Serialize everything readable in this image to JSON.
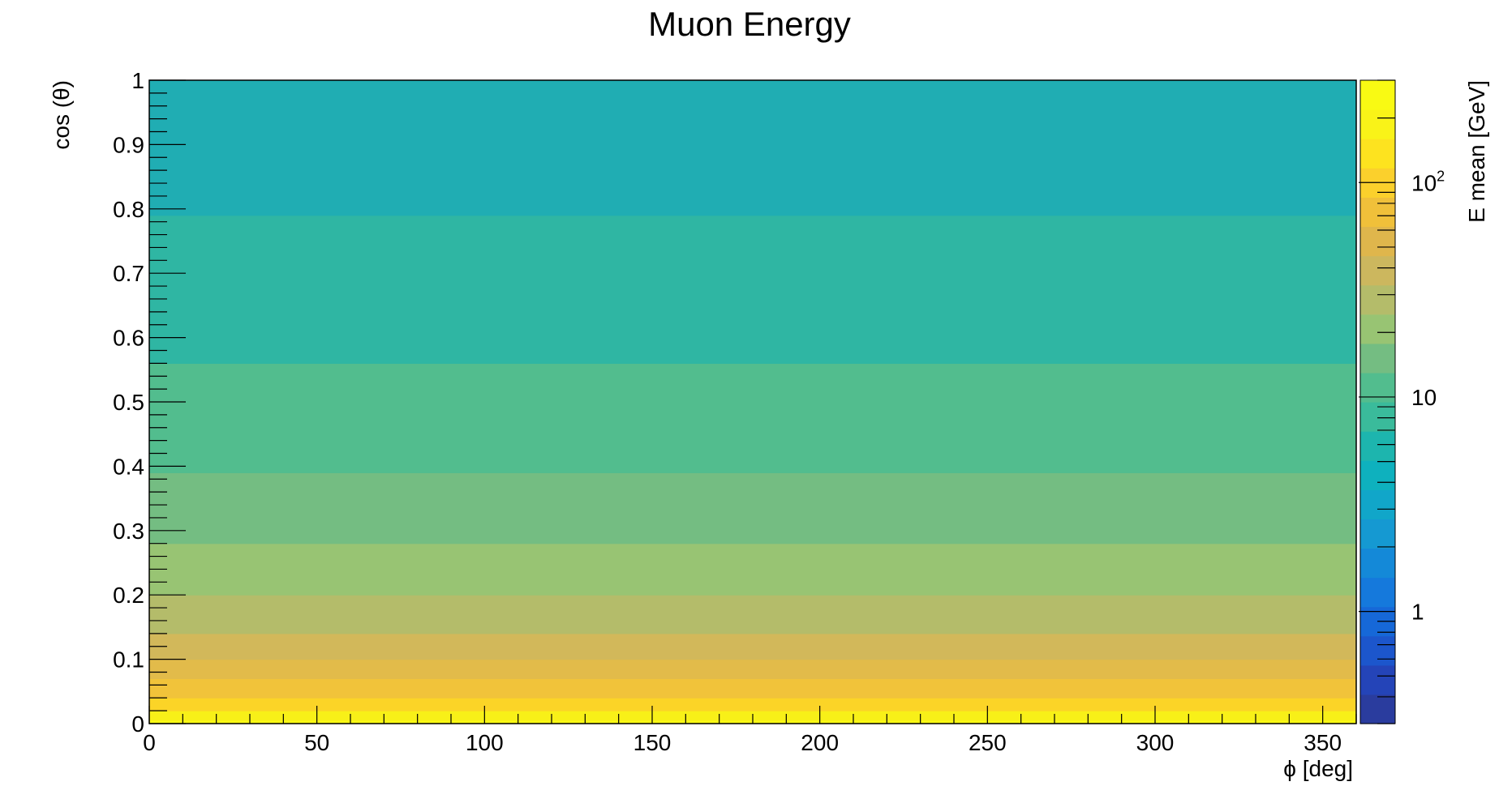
{
  "chart_data": {
    "type": "heatmap",
    "title": "Muon Energy",
    "xlabel": "ϕ [deg]",
    "ylabel": "cos (θ)",
    "zlabel": "E mean [GeV]",
    "xlim": [
      0,
      360
    ],
    "ylim": [
      0,
      1
    ],
    "zlim": [
      0.3,
      300
    ],
    "z_scale": "log",
    "x_ticks": [
      0,
      50,
      100,
      150,
      200,
      250,
      300,
      350
    ],
    "x_tick_labels": [
      "0",
      "50",
      "100",
      "150",
      "200",
      "250",
      "300",
      "350"
    ],
    "y_ticks": [
      0,
      0.1,
      0.2,
      0.3,
      0.4,
      0.5,
      0.6,
      0.7,
      0.8,
      0.9,
      1
    ],
    "y_tick_labels": [
      "0",
      "0.1",
      "0.2",
      "0.3",
      "0.4",
      "0.5",
      "0.6",
      "0.7",
      "0.8",
      "0.9",
      "1"
    ],
    "z_ticks": [
      {
        "value": 1,
        "base": "1",
        "exp": ""
      },
      {
        "value": 10,
        "base": "10",
        "exp": ""
      },
      {
        "value": 100,
        "base": "10",
        "exp": "2"
      }
    ],
    "bands": [
      {
        "y0": 0.0,
        "y1": 0.005,
        "color": "#f9fa13"
      },
      {
        "y0": 0.005,
        "y1": 0.02,
        "color": "#f8f018"
      },
      {
        "y0": 0.02,
        "y1": 0.04,
        "color": "#fbd427"
      },
      {
        "y0": 0.04,
        "y1": 0.07,
        "color": "#f1c33a"
      },
      {
        "y0": 0.07,
        "y1": 0.1,
        "color": "#e2bb4a"
      },
      {
        "y0": 0.1,
        "y1": 0.14,
        "color": "#d2b85a"
      },
      {
        "y0": 0.14,
        "y1": 0.2,
        "color": "#b4bc6a"
      },
      {
        "y0": 0.2,
        "y1": 0.28,
        "color": "#98c473"
      },
      {
        "y0": 0.28,
        "y1": 0.39,
        "color": "#74bd82"
      },
      {
        "y0": 0.39,
        "y1": 0.56,
        "color": "#52bd8e"
      },
      {
        "y0": 0.56,
        "y1": 0.79,
        "color": "#2fb6a3"
      },
      {
        "y0": 0.79,
        "y1": 1.0,
        "color": "#20adb3"
      }
    ],
    "palette": [
      "#2a3c9e",
      "#2444b8",
      "#1c56cc",
      "#1668d8",
      "#1579dc",
      "#1489d8",
      "#1599d2",
      "#11a6c9",
      "#0eb1be",
      "#1db5ae",
      "#3abb9b",
      "#52bd8e",
      "#74bd82",
      "#98c473",
      "#b4bc6a",
      "#ccb75e",
      "#dfb64c",
      "#f0c03a",
      "#fbd02c",
      "#fde31f",
      "#f9f318",
      "#f9fa13"
    ]
  }
}
